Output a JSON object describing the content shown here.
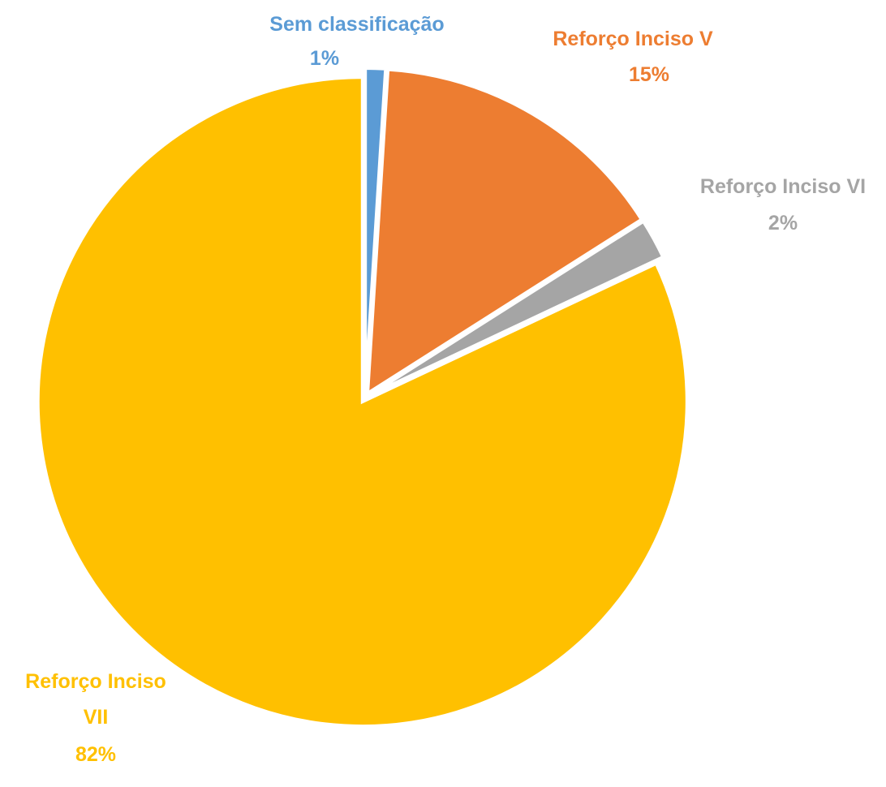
{
  "chart_data": {
    "type": "pie",
    "categories": [
      "Sem classificação",
      "Reforço Inciso V",
      "Reforço Inciso VI",
      "Reforço Inciso VII"
    ],
    "values": [
      1,
      15,
      2,
      82
    ],
    "value_labels": [
      "1%",
      "15%",
      "2%",
      "82%"
    ],
    "colors": [
      "#5b9bd5",
      "#ed7d31",
      "#a5a5a5",
      "#ffc000"
    ]
  }
}
